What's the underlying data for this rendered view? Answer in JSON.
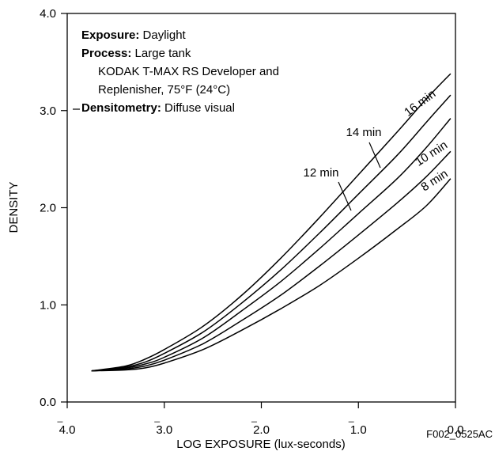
{
  "chart_data": {
    "type": "line",
    "xlabel": "LOG EXPOSURE (lux-seconds)",
    "ylabel": "DENSITY",
    "xlim": [
      -4.0,
      0.0
    ],
    "ylim": [
      0.0,
      4.0
    ],
    "x_reversed_display": true,
    "x_ticks": [
      {
        "value": -4.0,
        "bar": "_",
        "digits": "4.0"
      },
      {
        "value": -3.0,
        "bar": "_",
        "digits": "3.0"
      },
      {
        "value": -2.0,
        "bar": "_",
        "digits": "2.0"
      },
      {
        "value": -1.0,
        "bar": "_",
        "digits": "1.0"
      },
      {
        "value": 0.0,
        "bar": "",
        "digits": "0.0"
      }
    ],
    "y_ticks": [
      {
        "value": 0.0,
        "label": "0.0"
      },
      {
        "value": 1.0,
        "label": "1.0"
      },
      {
        "value": 2.0,
        "label": "2.0"
      },
      {
        "value": 3.0,
        "label": "3.0"
      },
      {
        "value": 4.0,
        "label": "4.0"
      }
    ],
    "grid": false,
    "annotation": {
      "lines": [
        {
          "bold": "Exposure:",
          "text": " Daylight",
          "indent": false
        },
        {
          "bold": "Process:",
          "text": " Large tank",
          "indent": false
        },
        {
          "bold": "",
          "text": "KODAK T-MAX RS Developer and",
          "indent": true
        },
        {
          "bold": "",
          "text": "Replenisher, 75°F (24°C)",
          "indent": true
        },
        {
          "bold": "Densitometry:",
          "text": " Diffuse visual",
          "indent": false
        }
      ]
    },
    "figure_id": "F002_0525AC",
    "series": [
      {
        "name": "8 min",
        "x": [
          -3.75,
          -3.4,
          -3.2,
          -3.0,
          -2.6,
          -2.2,
          -1.8,
          -1.4,
          -1.0,
          -0.6,
          -0.3,
          -0.05
        ],
        "y": [
          0.32,
          0.33,
          0.35,
          0.4,
          0.54,
          0.74,
          0.96,
          1.2,
          1.48,
          1.78,
          2.02,
          2.3
        ]
      },
      {
        "name": "10 min",
        "x": [
          -3.75,
          -3.4,
          -3.2,
          -3.0,
          -2.6,
          -2.2,
          -1.8,
          -1.4,
          -1.0,
          -0.6,
          -0.3,
          -0.05
        ],
        "y": [
          0.32,
          0.34,
          0.37,
          0.43,
          0.6,
          0.84,
          1.1,
          1.4,
          1.72,
          2.05,
          2.32,
          2.58
        ]
      },
      {
        "name": "12 min",
        "x": [
          -3.75,
          -3.4,
          -3.2,
          -3.0,
          -2.6,
          -2.2,
          -1.8,
          -1.4,
          -1.0,
          -0.6,
          -0.3,
          -0.05
        ],
        "y": [
          0.32,
          0.35,
          0.39,
          0.46,
          0.66,
          0.94,
          1.24,
          1.58,
          1.94,
          2.3,
          2.62,
          2.92
        ]
      },
      {
        "name": "14 min",
        "x": [
          -3.75,
          -3.4,
          -3.2,
          -3.0,
          -2.6,
          -2.2,
          -1.8,
          -1.4,
          -1.0,
          -0.6,
          -0.3,
          -0.05
        ],
        "y": [
          0.32,
          0.36,
          0.41,
          0.5,
          0.72,
          1.02,
          1.36,
          1.74,
          2.14,
          2.54,
          2.88,
          3.16
        ]
      },
      {
        "name": "16 min",
        "x": [
          -3.75,
          -3.4,
          -3.2,
          -3.0,
          -2.6,
          -2.2,
          -1.8,
          -1.4,
          -1.0,
          -0.6,
          -0.3,
          -0.05
        ],
        "y": [
          0.32,
          0.37,
          0.44,
          0.54,
          0.78,
          1.1,
          1.48,
          1.9,
          2.34,
          2.78,
          3.12,
          3.38
        ]
      }
    ]
  }
}
